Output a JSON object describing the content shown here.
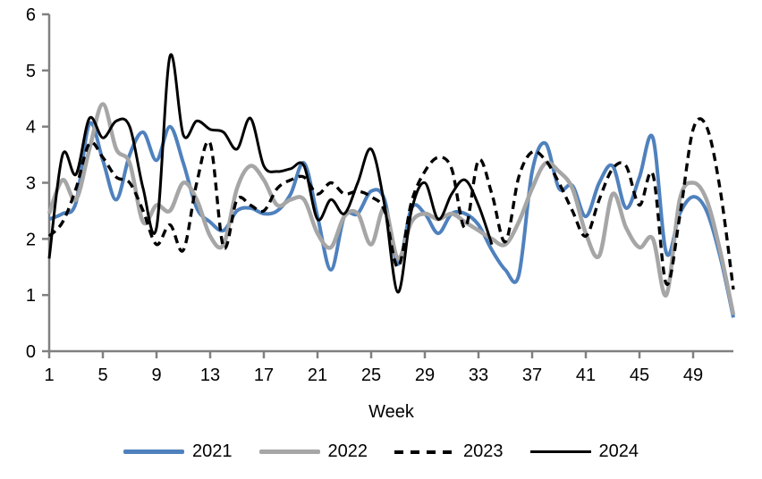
{
  "chart_data": {
    "type": "line",
    "title": "",
    "xlabel": "Week",
    "ylabel": "",
    "ylim": [
      0,
      6
    ],
    "yticks": [
      0,
      1,
      2,
      3,
      4,
      5,
      6
    ],
    "xticks": [
      1,
      5,
      9,
      13,
      17,
      21,
      25,
      29,
      33,
      37,
      41,
      45,
      49
    ],
    "x_range": [
      1,
      52
    ],
    "grid": false,
    "smoothed": true,
    "legend_position": "bottom",
    "axis_color": "#808080",
    "text_color": "#000000",
    "series": [
      {
        "name": "2021",
        "color": "#4F81BD",
        "line_style": "solid",
        "line_width": 4,
        "values": [
          2.35,
          2.45,
          2.65,
          4.05,
          3.4,
          2.7,
          3.5,
          3.9,
          3.4,
          4.0,
          3.35,
          2.55,
          2.3,
          2.15,
          2.5,
          2.55,
          2.45,
          2.5,
          2.8,
          3.35,
          2.4,
          1.45,
          2.4,
          2.45,
          2.85,
          2.7,
          1.55,
          2.55,
          2.45,
          2.1,
          2.45,
          2.45,
          2.25,
          1.8,
          1.45,
          1.35,
          3.2,
          3.7,
          2.9,
          2.95,
          2.4,
          3.0,
          3.3,
          2.55,
          3.1,
          3.8,
          1.75,
          2.45,
          2.75,
          2.5,
          1.7,
          0.6
        ]
      },
      {
        "name": "2022",
        "color": "#A6A6A6",
        "line_style": "solid",
        "line_width": 4.5,
        "values": [
          2.45,
          3.05,
          2.7,
          3.6,
          4.4,
          3.6,
          3.35,
          2.3,
          2.6,
          2.5,
          3.0,
          2.7,
          2.05,
          1.9,
          2.9,
          3.3,
          3.05,
          2.6,
          2.7,
          2.7,
          2.1,
          1.85,
          2.4,
          2.45,
          1.9,
          2.55,
          1.65,
          2.3,
          2.45,
          2.35,
          2.45,
          2.3,
          2.15,
          2.0,
          1.9,
          2.3,
          2.9,
          3.35,
          3.2,
          2.9,
          2.1,
          1.7,
          2.8,
          2.2,
          1.85,
          2.0,
          1.0,
          2.7,
          3.0,
          2.7,
          1.8,
          0.65
        ]
      },
      {
        "name": "2023",
        "color": "#000000",
        "line_style": "dashed",
        "line_width": 3.4,
        "values": [
          2.05,
          2.3,
          2.9,
          3.7,
          3.45,
          3.1,
          3.0,
          2.5,
          1.9,
          2.25,
          1.8,
          3.0,
          3.7,
          1.85,
          2.7,
          2.6,
          2.5,
          2.9,
          3.05,
          3.1,
          2.8,
          3.0,
          2.8,
          2.85,
          2.75,
          2.5,
          1.5,
          2.65,
          3.2,
          3.45,
          3.25,
          2.2,
          3.4,
          2.8,
          1.95,
          3.1,
          3.55,
          3.4,
          3.0,
          2.5,
          2.05,
          2.7,
          3.25,
          3.3,
          2.6,
          3.15,
          1.2,
          2.4,
          3.95,
          4.0,
          2.9,
          1.1
        ]
      },
      {
        "name": "2024",
        "color": "#000000",
        "line_style": "solid",
        "line_width": 3,
        "values": [
          1.65,
          3.5,
          3.15,
          4.15,
          3.8,
          4.1,
          4.0,
          2.9,
          2.2,
          5.25,
          3.85,
          4.1,
          3.95,
          3.9,
          3.6,
          4.15,
          3.3,
          3.2,
          3.25,
          3.3,
          2.35,
          2.7,
          2.45,
          3.0,
          3.6,
          2.6,
          1.05,
          2.5,
          3.0,
          2.35,
          2.8,
          3.05,
          2.6,
          1.9
        ]
      }
    ]
  },
  "legend": {
    "items": [
      "2021",
      "2022",
      "2023",
      "2024"
    ]
  }
}
